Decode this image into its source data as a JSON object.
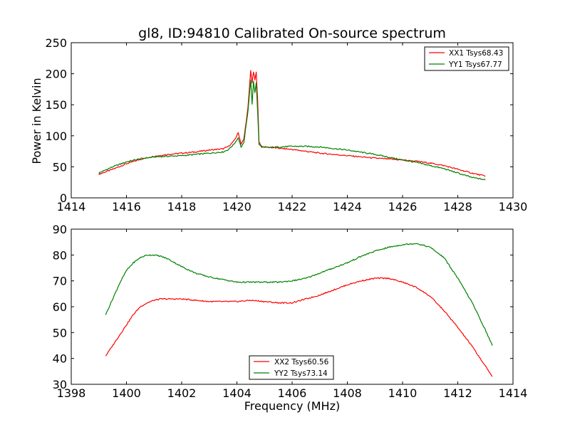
{
  "chart_data": [
    {
      "type": "line",
      "title": "gl8, ID:94810 Calibrated On-source spectrum",
      "xlabel": "",
      "ylabel": "Power in Kelvin",
      "xlim": [
        1414,
        1430
      ],
      "ylim": [
        0,
        250
      ],
      "xticks": [
        "1414",
        "1416",
        "1418",
        "1420",
        "1422",
        "1424",
        "1426",
        "1428",
        "1430"
      ],
      "yticks": [
        "0",
        "50",
        "100",
        "150",
        "200",
        "250"
      ],
      "grid": false,
      "legend_position": "upper right",
      "series": [
        {
          "name": "XX1 Tsys68.43",
          "color": "#ff0000",
          "x": [
            1415.0,
            1415.5,
            1416.0,
            1416.5,
            1417.0,
            1417.5,
            1418.0,
            1418.5,
            1419.0,
            1419.5,
            1419.7,
            1419.9,
            1420.05,
            1420.15,
            1420.25,
            1420.4,
            1420.5,
            1420.55,
            1420.6,
            1420.65,
            1420.7,
            1420.75,
            1420.8,
            1420.9,
            1421.0,
            1421.5,
            1422.0,
            1422.5,
            1423.0,
            1424.0,
            1425.0,
            1426.0,
            1426.5,
            1427.0,
            1427.5,
            1428.0,
            1428.5,
            1429.0
          ],
          "values": [
            38,
            46,
            55,
            62,
            67,
            70,
            72,
            74,
            77,
            79,
            83,
            92,
            105,
            87,
            94,
            145,
            205,
            185,
            203,
            190,
            202,
            160,
            90,
            83,
            82,
            80,
            78,
            75,
            72,
            68,
            64,
            61,
            59,
            56,
            52,
            46,
            40,
            35
          ]
        },
        {
          "name": "YY1 Tsys67.77",
          "color": "#008000",
          "x": [
            1415.0,
            1415.5,
            1416.0,
            1416.5,
            1417.0,
            1417.5,
            1418.0,
            1418.5,
            1419.0,
            1419.5,
            1419.7,
            1419.9,
            1420.05,
            1420.15,
            1420.25,
            1420.4,
            1420.5,
            1420.55,
            1420.6,
            1420.65,
            1420.7,
            1420.75,
            1420.8,
            1420.9,
            1421.0,
            1421.5,
            1422.0,
            1422.5,
            1423.0,
            1424.0,
            1425.0,
            1426.0,
            1426.5,
            1427.0,
            1427.5,
            1428.0,
            1428.5,
            1429.0
          ],
          "values": [
            40,
            50,
            58,
            63,
            66,
            67,
            68,
            70,
            72,
            74,
            78,
            87,
            97,
            82,
            88,
            140,
            190,
            150,
            188,
            170,
            185,
            140,
            86,
            82,
            81,
            82,
            83,
            83,
            82,
            77,
            70,
            61,
            57,
            52,
            47,
            40,
            33,
            29
          ]
        }
      ]
    },
    {
      "type": "line",
      "title": "",
      "xlabel": "Frequency (MHz)",
      "ylabel": "",
      "xlim": [
        1398,
        1414
      ],
      "ylim": [
        30,
        90
      ],
      "xticks": [
        "1398",
        "1400",
        "1402",
        "1404",
        "1406",
        "1408",
        "1410",
        "1412",
        "1414"
      ],
      "yticks": [
        "30",
        "40",
        "50",
        "60",
        "70",
        "80",
        "90"
      ],
      "grid": false,
      "legend_position": "lower center",
      "series": [
        {
          "name": "XX2 Tsys60.56",
          "color": "#ff0000",
          "x": [
            1399.25,
            1399.5,
            1399.75,
            1400.0,
            1400.25,
            1400.5,
            1400.75,
            1401.0,
            1401.25,
            1401.5,
            1401.75,
            1402.0,
            1402.5,
            1403.0,
            1403.5,
            1404.0,
            1404.5,
            1405.0,
            1405.5,
            1406.0,
            1406.5,
            1407.0,
            1407.5,
            1408.0,
            1408.5,
            1409.0,
            1409.5,
            1410.0,
            1410.5,
            1411.0,
            1411.5,
            1412.0,
            1412.5,
            1413.0,
            1413.25
          ],
          "values": [
            41,
            45,
            49,
            53,
            57,
            60,
            61.5,
            62.5,
            63,
            63,
            63,
            63,
            62.5,
            62,
            62,
            62,
            62.5,
            62,
            61.5,
            61.5,
            63,
            64.5,
            66.5,
            68.5,
            70,
            71,
            71,
            69.5,
            67.5,
            64,
            58.5,
            52,
            45,
            37,
            33
          ]
        },
        {
          "name": "YY2 Tsys73.14",
          "color": "#008000",
          "x": [
            1399.25,
            1399.5,
            1399.75,
            1400.0,
            1400.25,
            1400.5,
            1400.75,
            1401.0,
            1401.25,
            1401.5,
            1401.75,
            1402.0,
            1402.5,
            1403.0,
            1403.5,
            1404.0,
            1404.5,
            1405.0,
            1405.5,
            1406.0,
            1406.5,
            1407.0,
            1407.5,
            1408.0,
            1408.5,
            1409.0,
            1409.5,
            1410.0,
            1410.5,
            1411.0,
            1411.5,
            1412.0,
            1412.5,
            1413.0,
            1413.25
          ],
          "values": [
            57,
            63,
            69,
            74,
            77,
            79,
            80,
            80,
            79.5,
            78.5,
            77,
            75.5,
            73,
            71.5,
            70.5,
            69.5,
            69.5,
            69.5,
            69.5,
            70,
            71,
            73,
            75,
            77,
            79.5,
            81.5,
            83,
            84,
            84.5,
            83,
            79,
            71,
            62,
            51,
            45
          ]
        }
      ]
    }
  ]
}
